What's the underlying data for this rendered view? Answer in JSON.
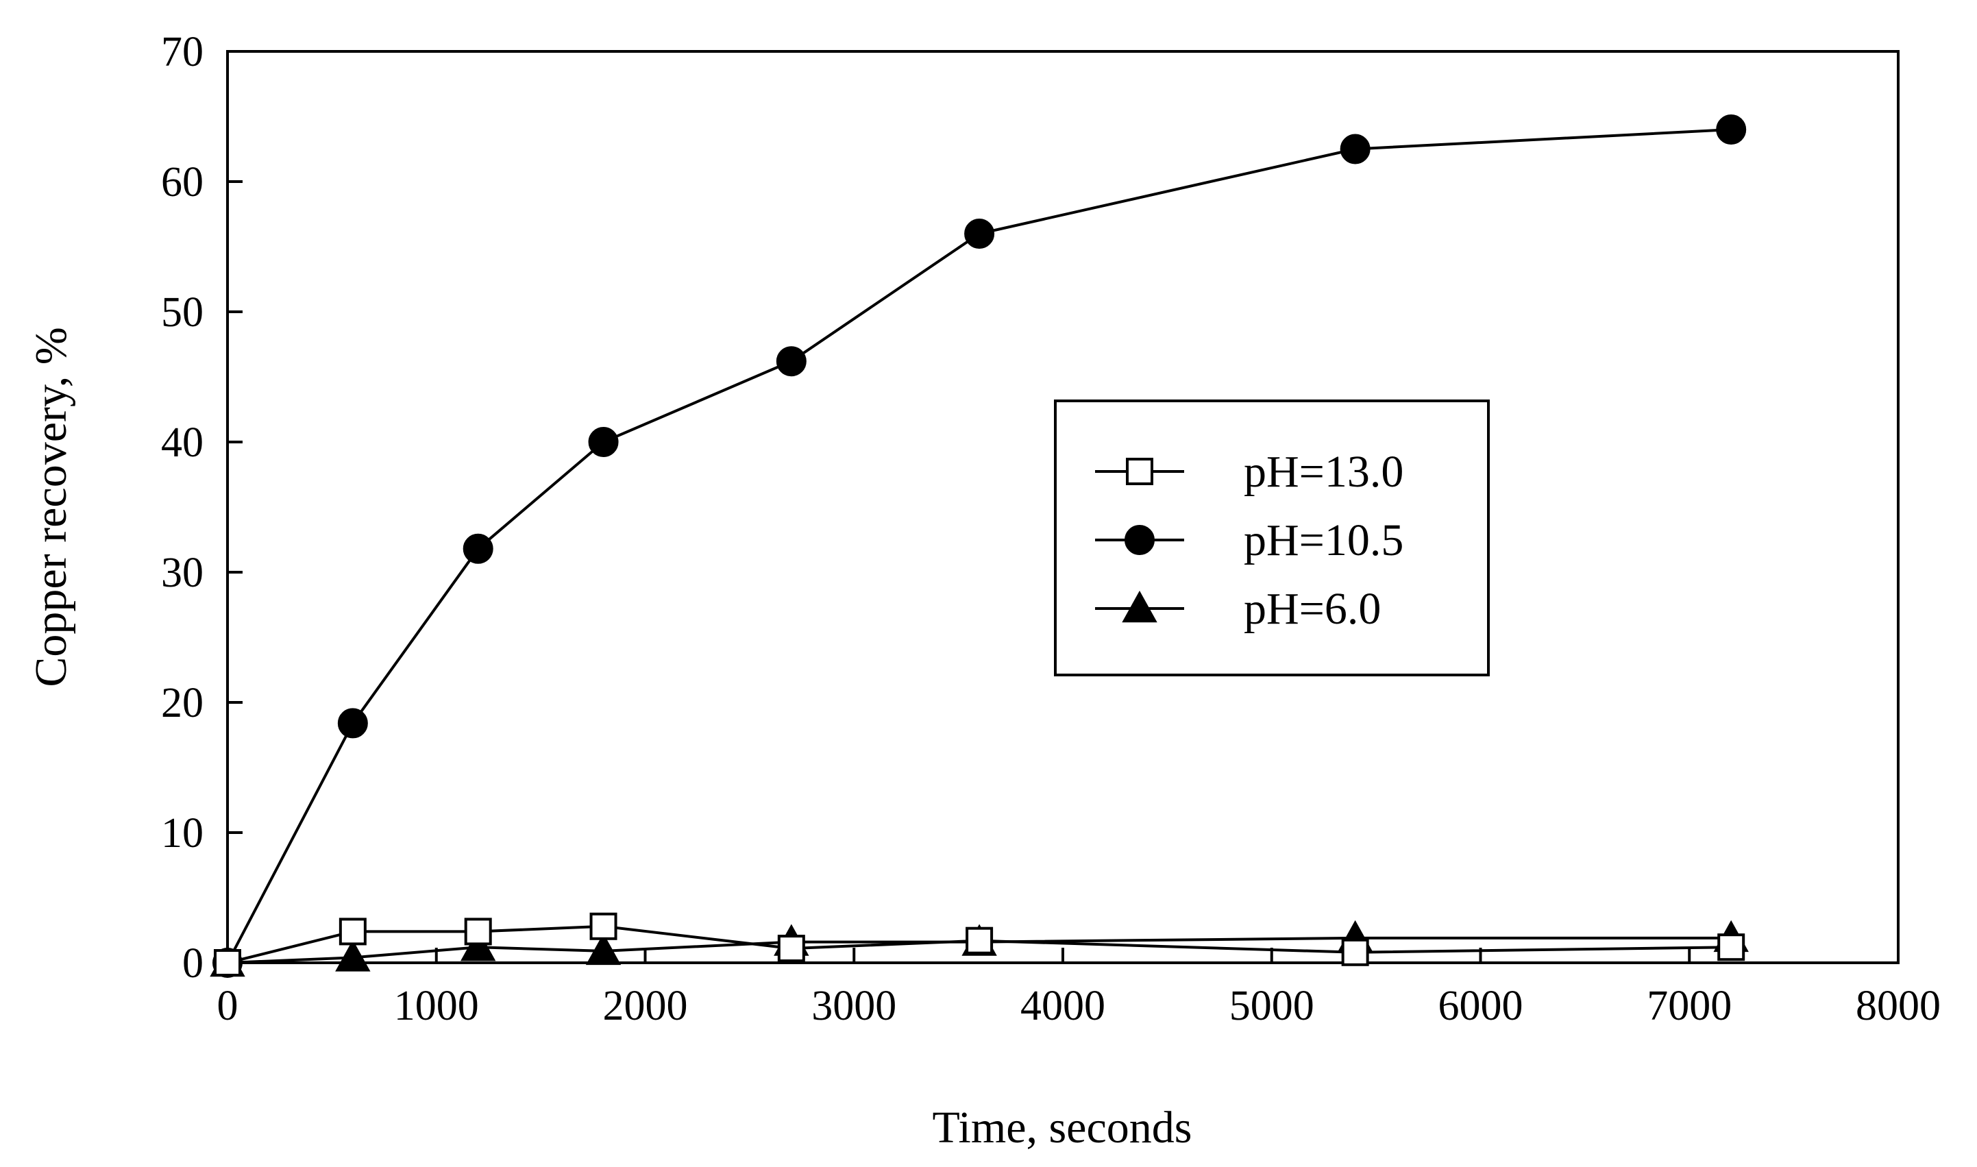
{
  "chart_data": {
    "type": "line",
    "title": "",
    "xlabel": "Time, seconds",
    "ylabel": "Copper recovery, %",
    "xlim": [
      0,
      8000
    ],
    "ylim": [
      0,
      70
    ],
    "xticks": [
      0,
      1000,
      2000,
      3000,
      4000,
      5000,
      6000,
      7000,
      8000
    ],
    "yticks": [
      0,
      10,
      20,
      30,
      40,
      50,
      60,
      70
    ],
    "grid": false,
    "legend_position": "center-right",
    "series": [
      {
        "name": "pH=13.0",
        "marker": "open-square",
        "x": [
          0,
          600,
          1200,
          1800,
          2700,
          3600,
          5400,
          7200
        ],
        "y": [
          0,
          2.4,
          2.4,
          2.8,
          1.1,
          1.7,
          0.8,
          1.2
        ]
      },
      {
        "name": "pH=10.5",
        "marker": "filled-circle",
        "x": [
          0,
          600,
          1200,
          1800,
          2700,
          3600,
          5400,
          7200
        ],
        "y": [
          0,
          18.4,
          31.8,
          40.0,
          46.2,
          56.0,
          62.5,
          64.0
        ]
      },
      {
        "name": "pH=6.0",
        "marker": "filled-triangle",
        "x": [
          0,
          600,
          1200,
          1800,
          2700,
          3600,
          5400,
          7200
        ],
        "y": [
          0,
          0.4,
          1.2,
          0.9,
          1.6,
          1.6,
          1.9,
          1.9
        ]
      }
    ]
  }
}
